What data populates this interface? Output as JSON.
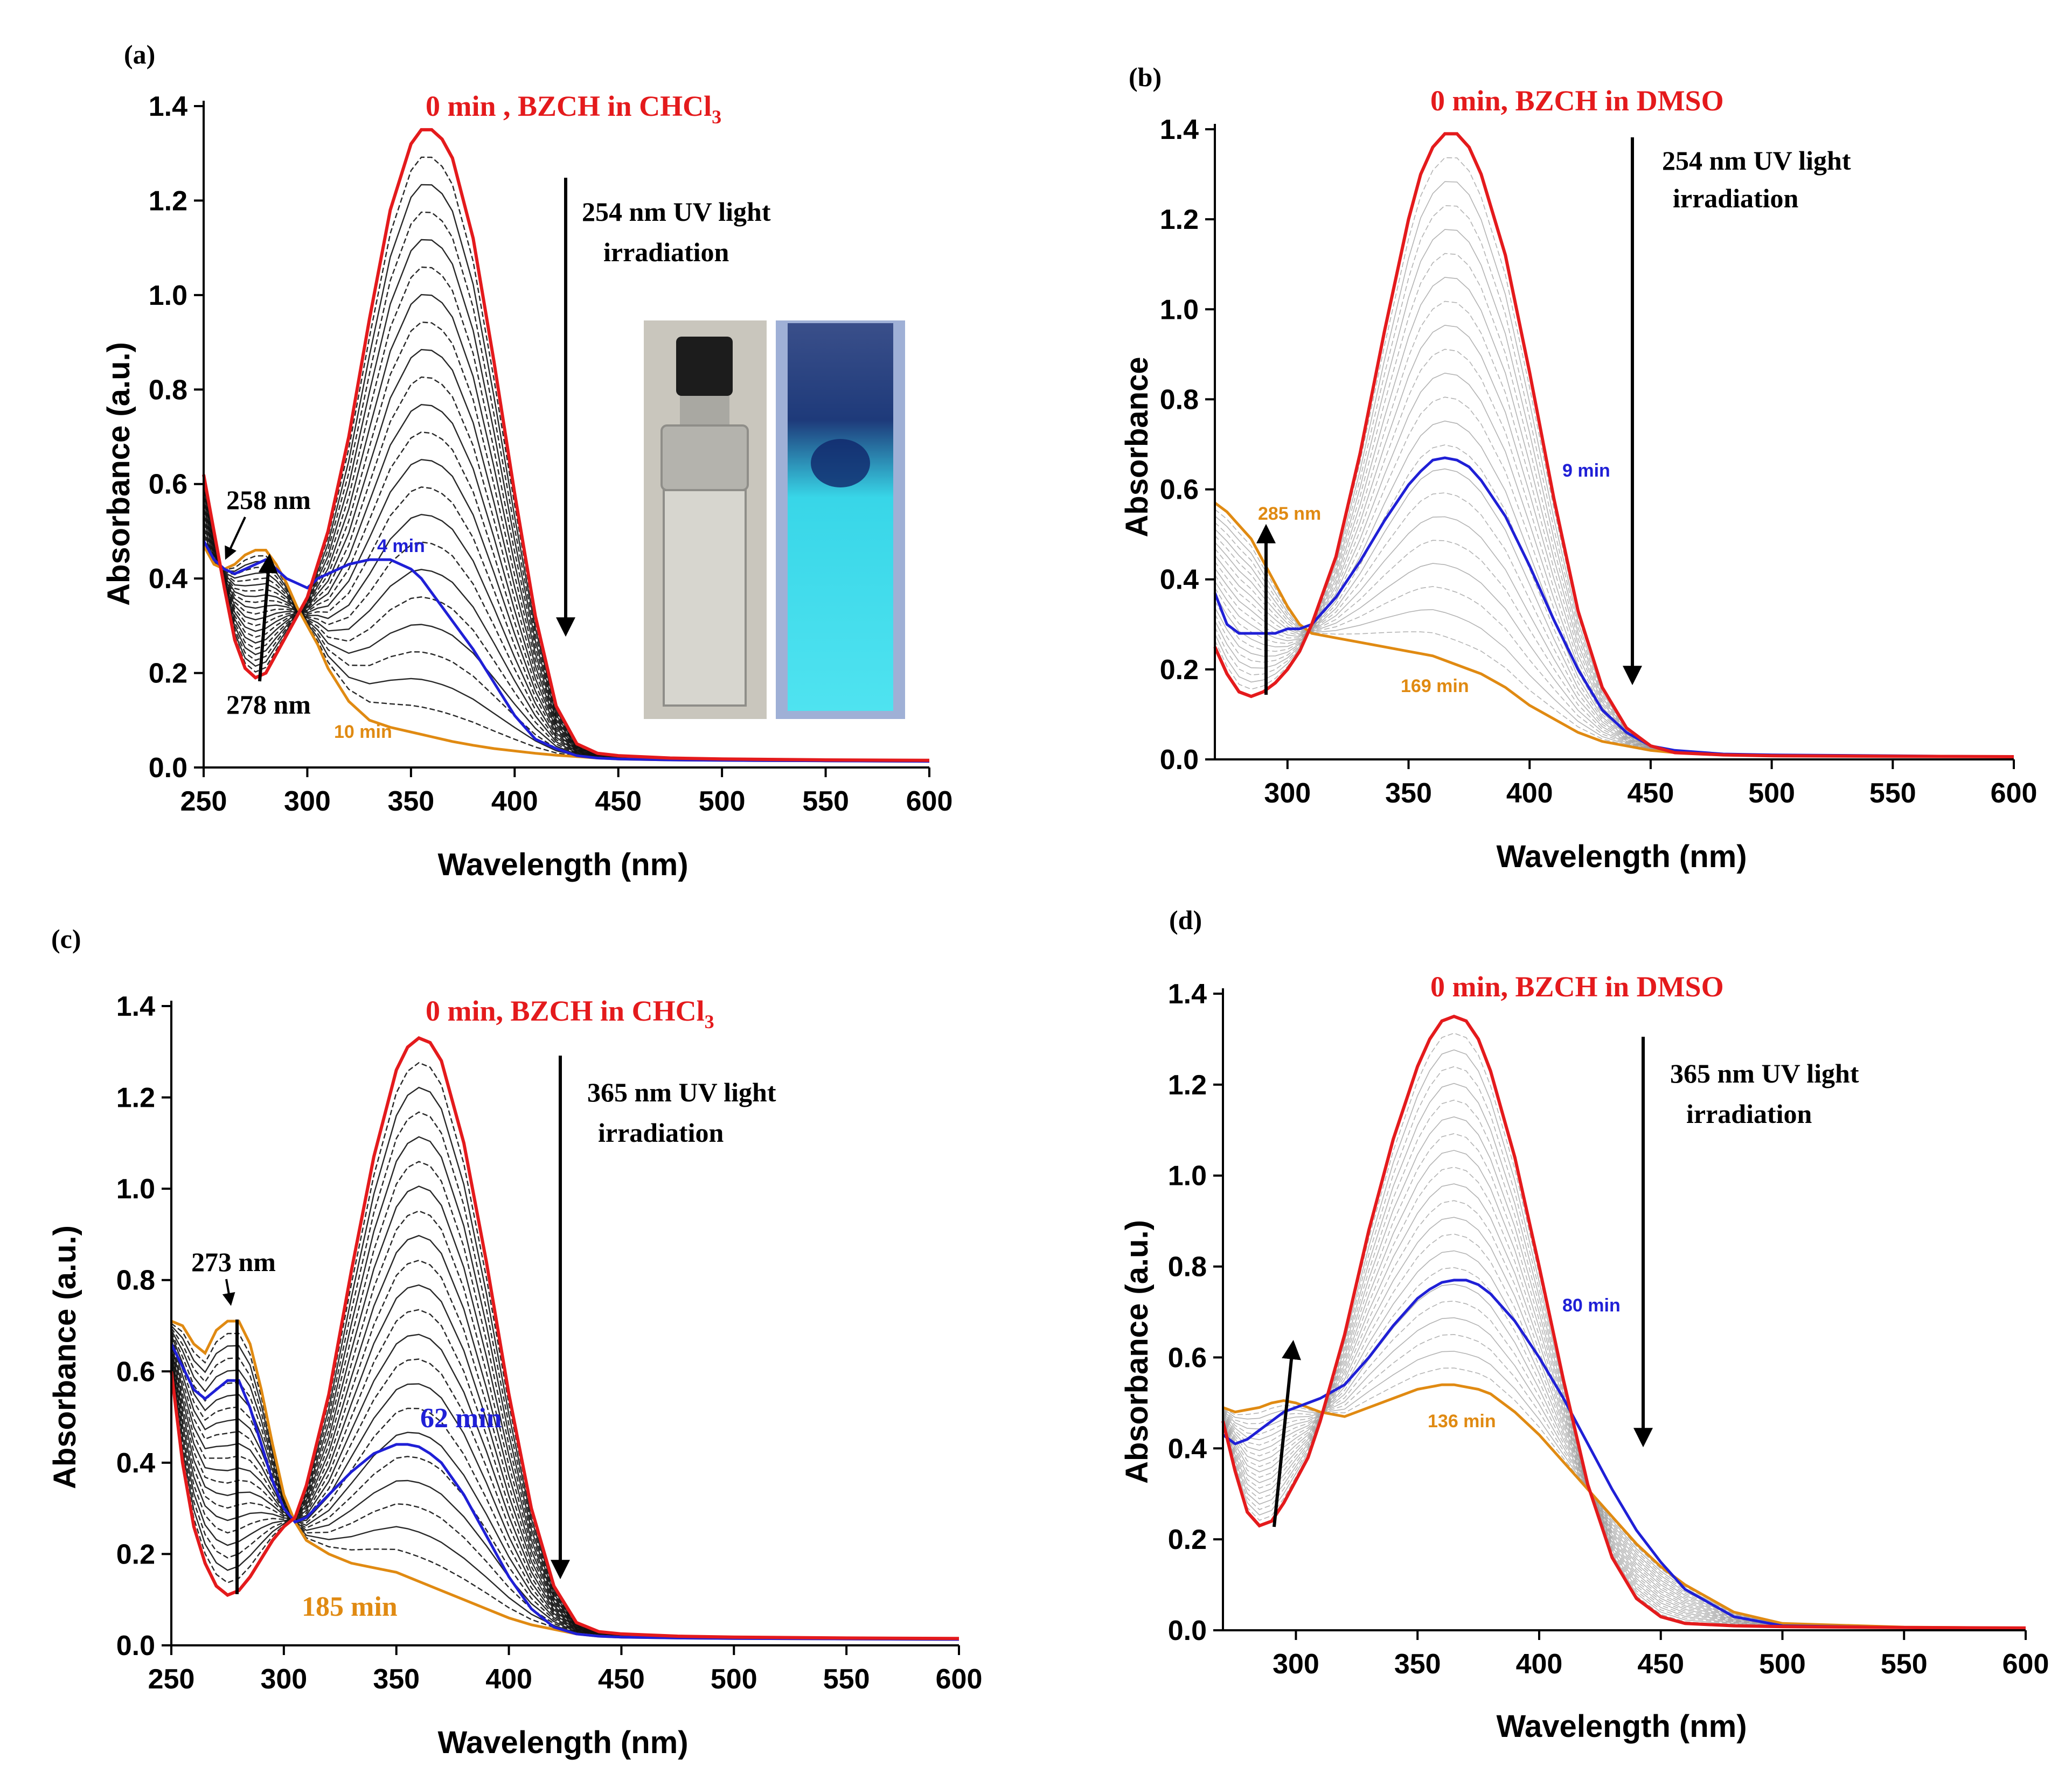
{
  "colors": {
    "initial": "#e41a1c",
    "intermediate": "#1f1fd6",
    "final": "#e08a12",
    "family_dark": "#111111",
    "family_light": "#9a9a9a",
    "arrow": "#000000"
  },
  "chart_data": [
    {
      "panel": "(a)",
      "type": "line",
      "title": "0 min , BZCH in CHCl3",
      "xlabel": "Wavelength (nm)",
      "ylabel": "Absorbance (a.u.)",
      "xlim": [
        250,
        600
      ],
      "ylim": [
        0,
        1.4
      ],
      "xticks": [
        "250",
        "300",
        "350",
        "400",
        "450",
        "500",
        "550",
        "600"
      ],
      "yticks": [
        "0.0",
        "0.2",
        "0.4",
        "0.6",
        "0.8",
        "1.0",
        "1.2",
        "1.4"
      ],
      "grid": false,
      "legend": "none",
      "annotations": [
        "254 nm UV light",
        "irradiation",
        "258 nm",
        "278 nm"
      ],
      "family_style": "dark",
      "series": [
        {
          "name": "0 min",
          "role": "initial",
          "x": [
            250,
            255,
            260,
            265,
            270,
            275,
            280,
            285,
            290,
            295,
            300,
            305,
            310,
            320,
            330,
            340,
            350,
            355,
            360,
            365,
            370,
            380,
            390,
            400,
            410,
            420,
            430,
            440,
            450,
            475,
            500,
            550,
            600
          ],
          "y": [
            0.62,
            0.5,
            0.38,
            0.27,
            0.21,
            0.19,
            0.2,
            0.24,
            0.28,
            0.32,
            0.36,
            0.43,
            0.5,
            0.7,
            0.95,
            1.18,
            1.32,
            1.35,
            1.35,
            1.33,
            1.29,
            1.12,
            0.86,
            0.58,
            0.32,
            0.13,
            0.05,
            0.03,
            0.025,
            0.02,
            0.018,
            0.016,
            0.015
          ]
        },
        {
          "name": "4 min",
          "role": "intermediate",
          "x": [
            250,
            255,
            260,
            265,
            270,
            275,
            280,
            285,
            290,
            295,
            300,
            305,
            310,
            320,
            330,
            340,
            350,
            355,
            360,
            365,
            370,
            380,
            390,
            400,
            410,
            420,
            430,
            440,
            450,
            475,
            500,
            550,
            600
          ],
          "y": [
            0.48,
            0.44,
            0.42,
            0.41,
            0.42,
            0.43,
            0.44,
            0.42,
            0.4,
            0.39,
            0.38,
            0.4,
            0.41,
            0.43,
            0.44,
            0.44,
            0.42,
            0.4,
            0.37,
            0.34,
            0.31,
            0.25,
            0.18,
            0.11,
            0.06,
            0.04,
            0.025,
            0.02,
            0.018,
            0.016,
            0.015,
            0.014,
            0.013
          ]
        },
        {
          "name": "10 min",
          "role": "final",
          "x": [
            250,
            255,
            260,
            265,
            270,
            275,
            280,
            285,
            290,
            295,
            300,
            305,
            310,
            320,
            330,
            340,
            350,
            355,
            360,
            365,
            370,
            380,
            390,
            400,
            410,
            420,
            430,
            440,
            450,
            475,
            500,
            550,
            600
          ],
          "y": [
            0.47,
            0.43,
            0.42,
            0.43,
            0.45,
            0.46,
            0.46,
            0.43,
            0.39,
            0.34,
            0.3,
            0.26,
            0.21,
            0.14,
            0.1,
            0.085,
            0.075,
            0.07,
            0.065,
            0.06,
            0.055,
            0.047,
            0.04,
            0.035,
            0.03,
            0.026,
            0.023,
            0.02,
            0.018,
            0.016,
            0.015,
            0.014,
            0.013
          ]
        }
      ]
    },
    {
      "panel": "(b)",
      "type": "line",
      "title": "0 min, BZCH in DMSO",
      "xlabel": "Wavelength (nm)",
      "ylabel": "Absorbance",
      "xlim": [
        270,
        600
      ],
      "ylim": [
        0,
        1.4
      ],
      "xticks": [
        "300",
        "350",
        "400",
        "450",
        "500",
        "550",
        "600"
      ],
      "yticks": [
        "0.0",
        "0.2",
        "0.4",
        "0.6",
        "0.8",
        "1.0",
        "1.2",
        "1.4"
      ],
      "grid": false,
      "legend": "none",
      "annotations": [
        "254 nm UV light",
        "irradiation",
        "285 nm"
      ],
      "family_style": "light",
      "series": [
        {
          "name": "0 min",
          "role": "initial",
          "x": [
            270,
            275,
            280,
            285,
            290,
            295,
            300,
            305,
            310,
            320,
            330,
            340,
            350,
            355,
            360,
            365,
            370,
            375,
            380,
            390,
            400,
            410,
            420,
            430,
            440,
            450,
            460,
            480,
            500,
            550,
            600
          ],
          "y": [
            0.25,
            0.19,
            0.15,
            0.14,
            0.15,
            0.17,
            0.2,
            0.24,
            0.3,
            0.45,
            0.68,
            0.95,
            1.2,
            1.3,
            1.36,
            1.39,
            1.39,
            1.36,
            1.3,
            1.12,
            0.86,
            0.58,
            0.33,
            0.16,
            0.07,
            0.03,
            0.015,
            0.01,
            0.008,
            0.007,
            0.006
          ]
        },
        {
          "name": "9 min",
          "role": "intermediate",
          "x": [
            270,
            275,
            280,
            285,
            290,
            295,
            300,
            305,
            310,
            320,
            330,
            340,
            350,
            355,
            360,
            365,
            370,
            375,
            380,
            390,
            400,
            410,
            420,
            430,
            440,
            450,
            460,
            480,
            500,
            550,
            600
          ],
          "y": [
            0.37,
            0.3,
            0.28,
            0.28,
            0.28,
            0.28,
            0.29,
            0.29,
            0.3,
            0.36,
            0.44,
            0.53,
            0.61,
            0.64,
            0.665,
            0.67,
            0.665,
            0.65,
            0.62,
            0.54,
            0.43,
            0.31,
            0.2,
            0.11,
            0.06,
            0.03,
            0.02,
            0.012,
            0.01,
            0.008,
            0.006
          ]
        },
        {
          "name": "169 min",
          "role": "final",
          "x": [
            270,
            275,
            280,
            285,
            290,
            295,
            300,
            305,
            310,
            320,
            330,
            340,
            350,
            355,
            360,
            365,
            370,
            375,
            380,
            390,
            400,
            410,
            420,
            430,
            440,
            450,
            460,
            480,
            500,
            550,
            600
          ],
          "y": [
            0.57,
            0.55,
            0.52,
            0.49,
            0.44,
            0.39,
            0.34,
            0.3,
            0.28,
            0.27,
            0.26,
            0.25,
            0.24,
            0.235,
            0.23,
            0.22,
            0.21,
            0.2,
            0.19,
            0.16,
            0.12,
            0.09,
            0.06,
            0.04,
            0.03,
            0.02,
            0.015,
            0.01,
            0.008,
            0.007,
            0.006
          ]
        }
      ]
    },
    {
      "panel": "(c)",
      "type": "line",
      "title": "0 min,  BZCH in CHCl3",
      "xlabel": "Wavelength (nm)",
      "ylabel": "Absorbance (a.u.)",
      "xlim": [
        250,
        600
      ],
      "ylim": [
        0,
        1.4
      ],
      "xticks": [
        "250",
        "300",
        "350",
        "400",
        "450",
        "500",
        "550",
        "600"
      ],
      "yticks": [
        "0.0",
        "0.2",
        "0.4",
        "0.6",
        "0.8",
        "1.0",
        "1.2",
        "1.4"
      ],
      "grid": false,
      "legend": "none",
      "annotations": [
        "365 nm UV light",
        "irradiation",
        "273 nm"
      ],
      "family_style": "dark",
      "series": [
        {
          "name": "0 min",
          "role": "initial",
          "x": [
            250,
            255,
            260,
            265,
            270,
            275,
            280,
            285,
            290,
            295,
            300,
            305,
            310,
            320,
            330,
            340,
            350,
            355,
            360,
            365,
            370,
            380,
            390,
            400,
            410,
            420,
            430,
            440,
            450,
            475,
            500,
            550,
            600
          ],
          "y": [
            0.6,
            0.4,
            0.26,
            0.18,
            0.13,
            0.11,
            0.12,
            0.15,
            0.19,
            0.23,
            0.26,
            0.28,
            0.35,
            0.55,
            0.82,
            1.07,
            1.26,
            1.31,
            1.33,
            1.32,
            1.28,
            1.1,
            0.84,
            0.55,
            0.3,
            0.13,
            0.05,
            0.03,
            0.025,
            0.02,
            0.018,
            0.016,
            0.015
          ]
        },
        {
          "name": "62 min",
          "role": "intermediate",
          "x": [
            250,
            255,
            260,
            265,
            270,
            275,
            280,
            285,
            290,
            295,
            300,
            305,
            310,
            320,
            330,
            340,
            350,
            355,
            360,
            365,
            370,
            380,
            390,
            400,
            410,
            420,
            430,
            440,
            450,
            475,
            500,
            550,
            600
          ],
          "y": [
            0.66,
            0.61,
            0.56,
            0.54,
            0.56,
            0.58,
            0.58,
            0.52,
            0.44,
            0.36,
            0.3,
            0.27,
            0.28,
            0.33,
            0.38,
            0.42,
            0.44,
            0.44,
            0.435,
            0.42,
            0.4,
            0.33,
            0.24,
            0.15,
            0.08,
            0.04,
            0.025,
            0.02,
            0.018,
            0.016,
            0.015,
            0.014,
            0.013
          ]
        },
        {
          "name": "185 min",
          "role": "final",
          "x": [
            250,
            255,
            260,
            265,
            270,
            275,
            280,
            285,
            290,
            295,
            300,
            305,
            310,
            320,
            330,
            340,
            350,
            355,
            360,
            365,
            370,
            380,
            390,
            400,
            410,
            420,
            430,
            440,
            450,
            475,
            500,
            550,
            600
          ],
          "y": [
            0.71,
            0.7,
            0.66,
            0.64,
            0.69,
            0.71,
            0.71,
            0.66,
            0.56,
            0.44,
            0.33,
            0.27,
            0.23,
            0.2,
            0.18,
            0.17,
            0.16,
            0.15,
            0.14,
            0.13,
            0.12,
            0.1,
            0.08,
            0.06,
            0.045,
            0.035,
            0.025,
            0.02,
            0.018,
            0.016,
            0.015,
            0.014,
            0.013
          ]
        }
      ]
    },
    {
      "panel": "(d)",
      "type": "line",
      "title": "0 min, BZCH in DMSO",
      "xlabel": "Wavelength (nm)",
      "ylabel": "Absorbance (a.u.)",
      "xlim": [
        270,
        600
      ],
      "ylim": [
        0,
        1.4
      ],
      "xticks": [
        "300",
        "350",
        "400",
        "450",
        "500",
        "550",
        "600"
      ],
      "yticks": [
        "0.0",
        "0.2",
        "0.4",
        "0.6",
        "0.8",
        "1.0",
        "1.2",
        "1.4"
      ],
      "grid": false,
      "legend": "none",
      "annotations": [
        "365 nm UV light",
        "irradiation"
      ],
      "family_style": "light",
      "series": [
        {
          "name": "0 min",
          "role": "initial",
          "x": [
            270,
            275,
            280,
            285,
            290,
            295,
            300,
            305,
            310,
            320,
            330,
            340,
            350,
            355,
            360,
            365,
            370,
            375,
            380,
            390,
            400,
            410,
            420,
            430,
            440,
            450,
            460,
            480,
            500,
            550,
            600
          ],
          "y": [
            0.46,
            0.35,
            0.26,
            0.23,
            0.24,
            0.28,
            0.33,
            0.38,
            0.46,
            0.65,
            0.88,
            1.08,
            1.24,
            1.3,
            1.34,
            1.35,
            1.34,
            1.3,
            1.23,
            1.04,
            0.8,
            0.55,
            0.32,
            0.16,
            0.07,
            0.03,
            0.015,
            0.01,
            0.008,
            0.006,
            0.005
          ]
        },
        {
          "name": "80 min",
          "role": "intermediate",
          "x": [
            270,
            275,
            280,
            285,
            290,
            295,
            300,
            305,
            310,
            320,
            330,
            340,
            350,
            355,
            360,
            365,
            370,
            375,
            380,
            390,
            400,
            410,
            420,
            430,
            440,
            450,
            460,
            480,
            500,
            550,
            600
          ],
          "y": [
            0.43,
            0.41,
            0.42,
            0.44,
            0.46,
            0.48,
            0.49,
            0.5,
            0.51,
            0.54,
            0.6,
            0.67,
            0.73,
            0.75,
            0.765,
            0.77,
            0.77,
            0.76,
            0.74,
            0.68,
            0.6,
            0.51,
            0.41,
            0.31,
            0.22,
            0.15,
            0.09,
            0.03,
            0.01,
            0.006,
            0.005
          ]
        },
        {
          "name": "136 min",
          "role": "final",
          "x": [
            270,
            275,
            280,
            285,
            290,
            295,
            300,
            305,
            310,
            320,
            330,
            340,
            350,
            355,
            360,
            365,
            370,
            375,
            380,
            390,
            400,
            410,
            420,
            430,
            440,
            450,
            460,
            480,
            500,
            550,
            600
          ],
          "y": [
            0.49,
            0.48,
            0.485,
            0.49,
            0.5,
            0.505,
            0.5,
            0.49,
            0.48,
            0.47,
            0.49,
            0.51,
            0.53,
            0.535,
            0.54,
            0.54,
            0.535,
            0.53,
            0.52,
            0.48,
            0.43,
            0.37,
            0.31,
            0.25,
            0.19,
            0.14,
            0.1,
            0.04,
            0.015,
            0.007,
            0.005
          ]
        }
      ]
    }
  ]
}
